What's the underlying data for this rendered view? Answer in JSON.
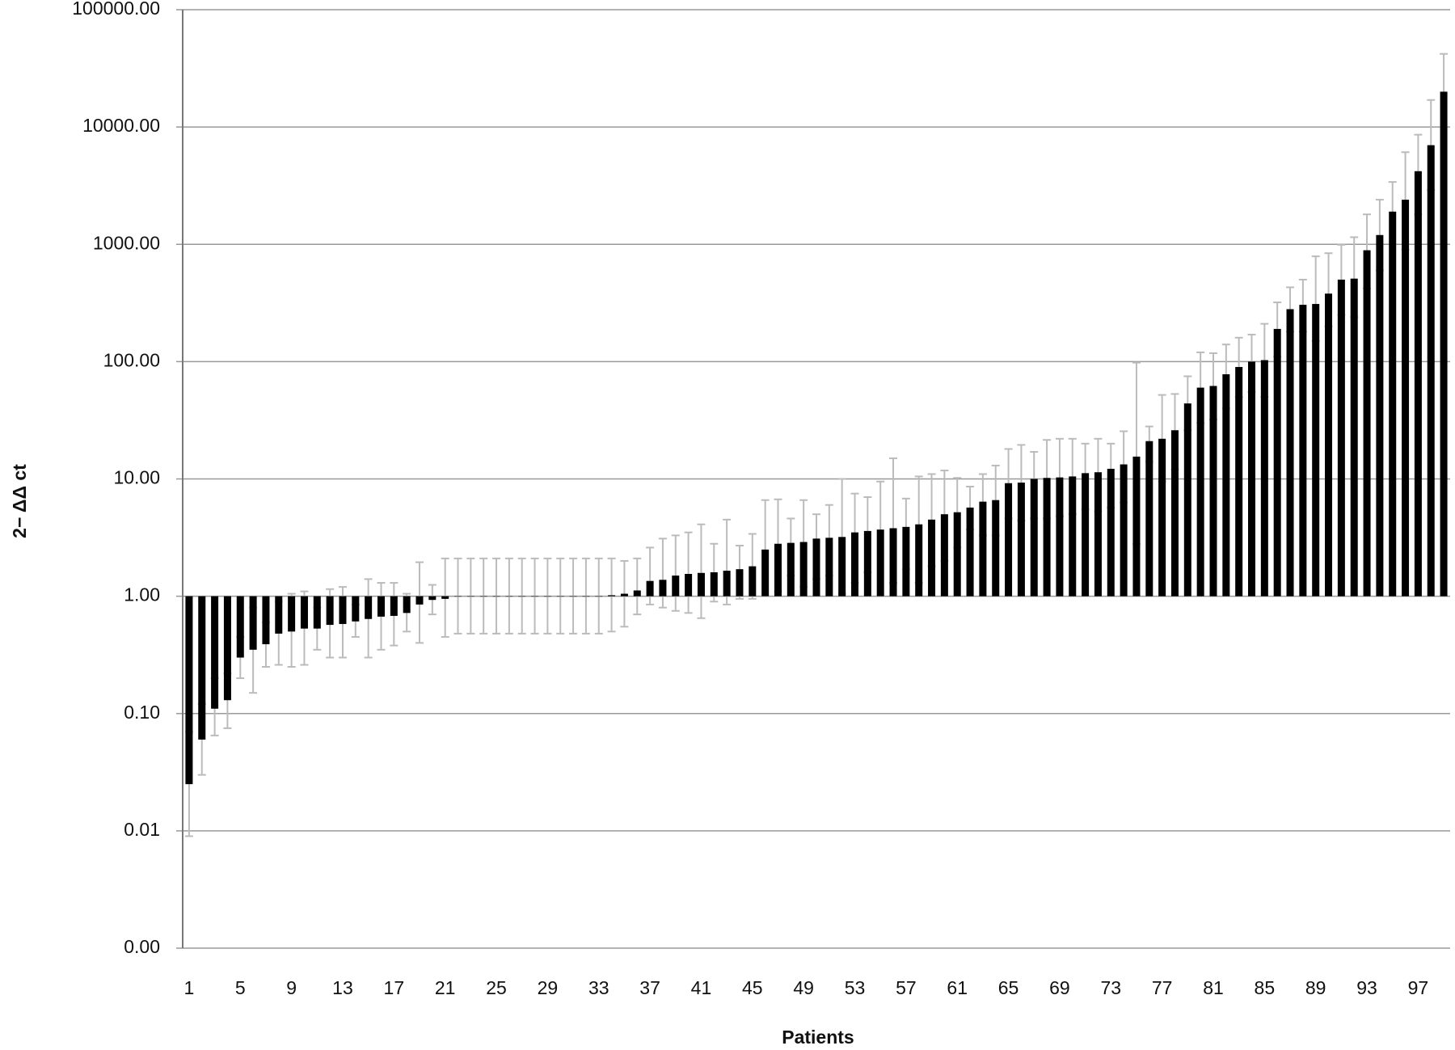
{
  "chart_data": {
    "type": "bar",
    "log_scale": true,
    "grid": true,
    "color": "#000000",
    "error_color": "#bbbbbb",
    "y_label": "2− ΔΔ ct",
    "x_label": "Patients",
    "categories": [
      "1",
      null,
      null,
      null,
      "5",
      null,
      null,
      null,
      "9",
      null,
      null,
      null,
      "13",
      null,
      null,
      null,
      "17",
      null,
      null,
      null,
      "21",
      null,
      null,
      null,
      "25",
      null,
      null,
      null,
      "29",
      null,
      null,
      null,
      "33",
      null,
      null,
      null,
      "37",
      null,
      null,
      null,
      "41",
      null,
      null,
      null,
      "45",
      null,
      null,
      null,
      "49",
      null,
      null,
      null,
      "53",
      null,
      null,
      null,
      "57",
      null,
      null,
      null,
      "61",
      null,
      null,
      null,
      "65",
      null,
      null,
      null,
      "69",
      null,
      null,
      null,
      "73",
      null,
      null,
      null,
      "77",
      null,
      null,
      null,
      "81",
      null,
      null,
      null,
      "85",
      null,
      null,
      null,
      "89",
      null,
      null,
      null,
      "93",
      null,
      null,
      null,
      "97",
      null,
      null
    ],
    "values": [
      0.025,
      0.06,
      0.11,
      0.13,
      0.3,
      0.35,
      0.39,
      0.48,
      0.5,
      0.53,
      0.53,
      0.57,
      0.58,
      0.61,
      0.64,
      0.67,
      0.68,
      0.72,
      0.85,
      0.93,
      0.95,
      1,
      1,
      1,
      1,
      1,
      1,
      1,
      1,
      1,
      1,
      1,
      1,
      1.02,
      1.05,
      1.12,
      1.35,
      1.38,
      1.5,
      1.55,
      1.58,
      1.6,
      1.65,
      1.7,
      1.8,
      2.5,
      2.8,
      2.85,
      2.9,
      3.1,
      3.15,
      3.2,
      3.5,
      3.6,
      3.7,
      3.8,
      3.9,
      4.1,
      4.5,
      5.0,
      5.2,
      5.7,
      6.4,
      6.6,
      9.2,
      9.3,
      10.0,
      10.2,
      10.3,
      10.5,
      11.2,
      11.4,
      12.2,
      13.3,
      15.5,
      21,
      22,
      26,
      44,
      60,
      62,
      78,
      90,
      100,
      103,
      190,
      280,
      305,
      310,
      380,
      500,
      510,
      890,
      1200,
      1900,
      2400,
      4200,
      7000,
      20000
    ],
    "error_low": [
      0.009,
      0.03,
      0.065,
      0.075,
      0.2,
      0.15,
      0.25,
      0.26,
      0.25,
      0.26,
      0.35,
      0.3,
      0.3,
      0.45,
      0.3,
      0.35,
      0.38,
      0.5,
      0.4,
      0.7,
      0.45,
      0.48,
      0.48,
      0.48,
      0.48,
      0.48,
      0.48,
      0.48,
      0.48,
      0.48,
      0.48,
      0.48,
      0.48,
      0.5,
      0.55,
      0.7,
      0.85,
      0.8,
      0.75,
      0.72,
      0.65,
      0.9,
      0.85,
      0.95,
      0.95,
      1.0,
      1.1,
      1.5,
      1.2,
      1.4,
      1.5,
      1.05,
      1.3,
      1.6,
      1.0,
      1.3,
      1.7,
      1.3,
      1.8,
      2.0,
      2.6,
      3.7,
      3.3,
      3.3,
      4.6,
      4.4,
      4.6,
      4.6,
      4.8,
      5.0,
      5.5,
      5.3,
      5.7,
      6.3,
      2.8,
      14,
      9.5,
      12,
      26,
      30,
      32,
      40,
      50,
      55,
      50,
      110,
      180,
      180,
      150,
      200,
      250,
      240,
      420,
      600,
      1000,
      900,
      1800,
      2900,
      10000
    ],
    "error_high": [
      0.07,
      0.12,
      0.2,
      0.22,
      0.45,
      0.8,
      0.6,
      0.9,
      1.05,
      1.1,
      0.8,
      1.15,
      1.2,
      0.85,
      1.4,
      1.3,
      1.3,
      1.05,
      1.95,
      1.25,
      2.1,
      2.1,
      2.1,
      2.1,
      2.1,
      2.1,
      2.1,
      2.1,
      2.1,
      2.1,
      2.1,
      2.1,
      2.1,
      2.1,
      2.0,
      2.1,
      2.6,
      3.1,
      3.3,
      3.5,
      4.1,
      2.8,
      4.5,
      2.7,
      3.4,
      6.6,
      6.7,
      4.6,
      6.6,
      5.0,
      6.0,
      10,
      7.5,
      7.0,
      9.5,
      15,
      6.8,
      10.5,
      11,
      11.8,
      10.2,
      8.6,
      11,
      13,
      18,
      19.5,
      17,
      21.5,
      22,
      22,
      20,
      22,
      20,
      25.5,
      98,
      28,
      52,
      53,
      75,
      120,
      118,
      140,
      160,
      170,
      210,
      320,
      430,
      500,
      790,
      840,
      990,
      1150,
      1800,
      2400,
      3400,
      6100,
      8600,
      17000,
      42000
    ],
    "ylim": [
      0.001,
      100000
    ],
    "yticks": [
      {
        "value": 0.001,
        "label": "0.00"
      },
      {
        "value": 0.01,
        "label": "0.01"
      },
      {
        "value": 0.1,
        "label": "0.10"
      },
      {
        "value": 1,
        "label": "1.00"
      },
      {
        "value": 10,
        "label": "10.00"
      },
      {
        "value": 100,
        "label": "100.00"
      },
      {
        "value": 1000,
        "label": "1000.00"
      },
      {
        "value": 10000,
        "label": "10000.00"
      },
      {
        "value": 100000,
        "label": "100000.00"
      }
    ]
  }
}
